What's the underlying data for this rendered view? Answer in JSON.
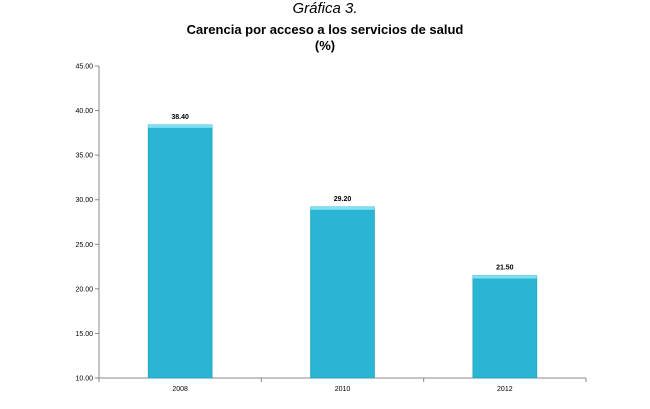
{
  "caption": "Gráfica 3.",
  "title_line1": "Carencia por acceso a los servicios de salud",
  "title_line2": "(%)",
  "chart_data": {
    "type": "bar",
    "categories": [
      "2008",
      "2010",
      "2012"
    ],
    "values": [
      38.4,
      29.2,
      21.5
    ],
    "data_labels": [
      "38.40",
      "29.20",
      "21.50"
    ],
    "ylim": [
      10,
      45
    ],
    "yticks": [
      "10.00",
      "15.00",
      "20.00",
      "25.00",
      "30.00",
      "35.00",
      "40.00",
      "45.00"
    ],
    "xlabel": "",
    "ylabel": "",
    "grid": false,
    "legend": false,
    "bar_color": "#29B5D3",
    "bar_top_color": "#7EE0F2"
  }
}
